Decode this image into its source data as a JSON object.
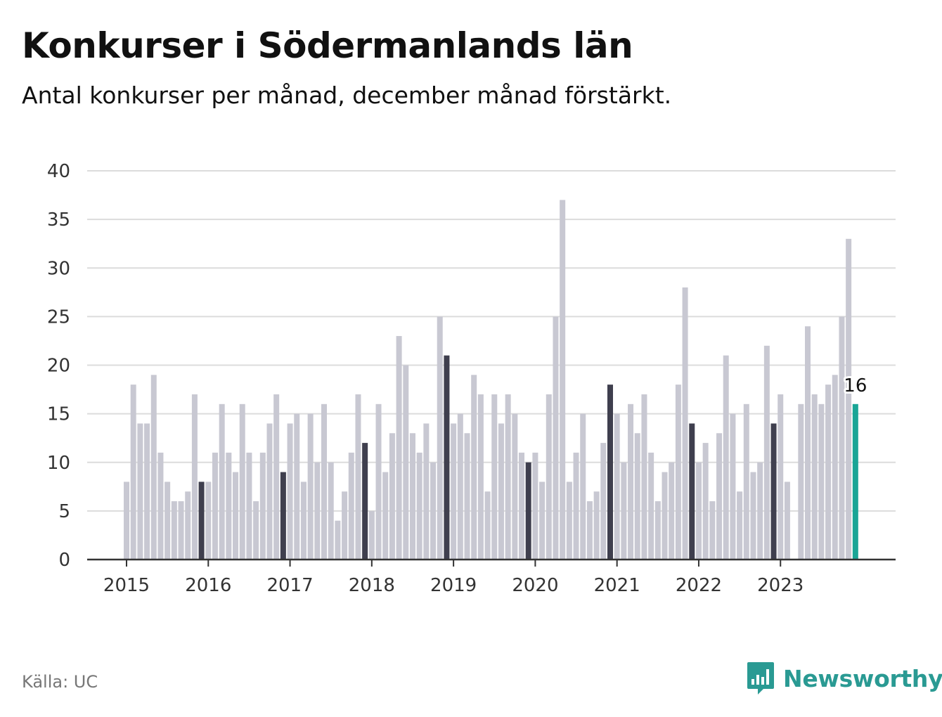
{
  "header": {
    "title": "Konkurser i Södermanlands län",
    "subtitle": "Antal konkurser per månad, december månad förstärkt."
  },
  "footer": {
    "source": "Källa: UC",
    "brand": "Newsworthy",
    "brand_icon": "bar-chart-speech-icon"
  },
  "colors": {
    "bar": "#c8c8d2",
    "bar_december": "#3f3f4e",
    "bar_latest": "#19a596",
    "grid": "#dcdcdc",
    "axis": "#333333",
    "brand": "#2a9a93"
  },
  "chart_data": {
    "type": "bar",
    "title": "Konkurser i Södermanlands län",
    "subtitle": "Antal konkurser per månad, december månad förstärkt.",
    "xlabel": "",
    "ylabel": "",
    "ylim": [
      0,
      40
    ],
    "yticks": [
      0,
      5,
      10,
      15,
      20,
      25,
      30,
      35,
      40
    ],
    "xticks": [
      "2015",
      "2016",
      "2017",
      "2018",
      "2019",
      "2020",
      "2021",
      "2022",
      "2023"
    ],
    "grid": true,
    "legend": "none",
    "start": "2015-01",
    "highlight": "december",
    "latest_label": "16",
    "values": [
      8,
      18,
      14,
      14,
      19,
      11,
      8,
      6,
      6,
      7,
      17,
      8,
      8,
      11,
      16,
      11,
      9,
      16,
      11,
      6,
      11,
      14,
      17,
      9,
      14,
      15,
      8,
      15,
      10,
      16,
      10,
      4,
      7,
      11,
      17,
      12,
      5,
      16,
      9,
      13,
      23,
      20,
      13,
      11,
      14,
      10,
      25,
      21,
      14,
      15,
      13,
      19,
      17,
      7,
      17,
      14,
      17,
      15,
      11,
      10,
      11,
      8,
      17,
      25,
      37,
      8,
      11,
      15,
      6,
      7,
      12,
      18,
      15,
      10,
      16,
      13,
      17,
      11,
      6,
      9,
      10,
      18,
      28,
      14,
      10,
      12,
      6,
      13,
      21,
      15,
      7,
      16,
      9,
      10,
      22,
      14,
      17,
      8,
      0,
      16,
      24,
      17,
      16,
      18,
      19,
      25,
      33,
      16
    ]
  }
}
